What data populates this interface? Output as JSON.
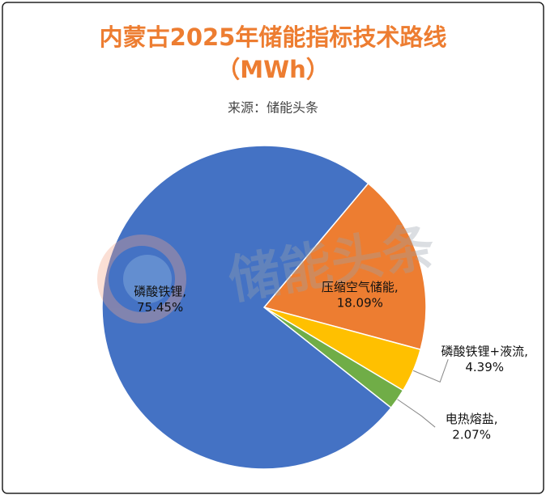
{
  "chart_data": {
    "type": "pie",
    "title": "内蒙古2025年储能指标技术路线",
    "title_unit": "（MWh）",
    "subtitle": "来源：储能头条",
    "watermark": "储能头条",
    "categories": [
      "压缩空气储能",
      "磷酸铁锂+液流",
      "电热熔盐",
      "磷酸铁锂"
    ],
    "label_separator": ",",
    "values": [
      18.09,
      4.39,
      2.07,
      75.45
    ],
    "value_labels": [
      "18.09%",
      "4.39%",
      "2.07%",
      "75.45%"
    ],
    "colors": [
      "#ed7d31",
      "#ffc000",
      "#70ad47",
      "#4472c4"
    ]
  }
}
